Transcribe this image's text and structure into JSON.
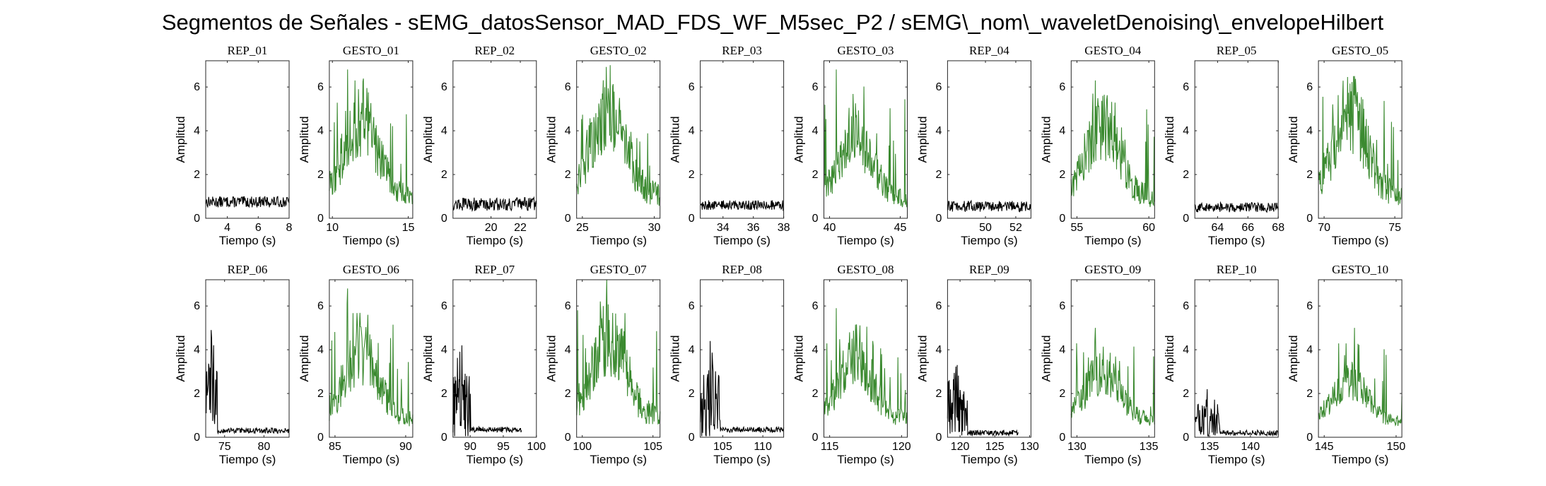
{
  "figure_title": "Segmentos de Señales - sEMG_datosSensor_MAD_FDS_WF_M5sec_P2 / sEMG\\_nom\\_waveletDenoising\\_envelopeHilbert",
  "colors": {
    "rep": "#000000",
    "gesto": "#3b8a30",
    "axis": "#262626"
  },
  "chart_data": [
    {
      "type": "line",
      "title": "REP_01",
      "xlabel": "Tiempo (s)",
      "ylabel": "Amplitud",
      "xlim": [
        2.6,
        8.0
      ],
      "ylim": [
        0,
        7.2
      ],
      "xticks": [
        4,
        6,
        8
      ],
      "yticks": [
        0,
        2,
        4,
        6
      ],
      "series": [
        {
          "color": "rep",
          "profile": "flat",
          "level": 0.75,
          "noise": 0.25
        }
      ]
    },
    {
      "type": "line",
      "title": "GESTO_01",
      "xlabel": "Tiempo (s)",
      "ylabel": "Amplitud",
      "xlim": [
        9.8,
        15.3
      ],
      "ylim": [
        0,
        7.2
      ],
      "xticks": [
        10,
        15
      ],
      "yticks": [
        0,
        2,
        4,
        6
      ],
      "series": [
        {
          "color": "gesto",
          "profile": "burst",
          "peak": 6.8,
          "level": 2.3
        }
      ]
    },
    {
      "type": "line",
      "title": "REP_02",
      "xlabel": "Tiempo (s)",
      "ylabel": "Amplitud",
      "xlim": [
        17.4,
        23.1
      ],
      "ylim": [
        0,
        7.2
      ],
      "xticks": [
        20,
        22
      ],
      "yticks": [
        0,
        2,
        4,
        6
      ],
      "series": [
        {
          "color": "rep",
          "profile": "flat",
          "level": 0.65,
          "noise": 0.3
        }
      ]
    },
    {
      "type": "line",
      "title": "GESTO_02",
      "xlabel": "Tiempo (s)",
      "ylabel": "Amplitud",
      "xlim": [
        24.6,
        30.4
      ],
      "ylim": [
        0,
        7.2
      ],
      "xticks": [
        25,
        30
      ],
      "yticks": [
        0,
        2,
        4,
        6
      ],
      "series": [
        {
          "color": "gesto",
          "profile": "burst",
          "peak": 5.6,
          "level": 2.6
        }
      ]
    },
    {
      "type": "line",
      "title": "REP_03",
      "xlabel": "Tiempo (s)",
      "ylabel": "Amplitud",
      "xlim": [
        32.5,
        38.0
      ],
      "ylim": [
        0,
        7.2
      ],
      "xticks": [
        34,
        36,
        38
      ],
      "yticks": [
        0,
        2,
        4,
        6
      ],
      "series": [
        {
          "color": "rep",
          "profile": "flat",
          "level": 0.6,
          "noise": 0.22
        }
      ]
    },
    {
      "type": "line",
      "title": "GESTO_03",
      "xlabel": "Tiempo (s)",
      "ylabel": "Amplitud",
      "xlim": [
        39.6,
        45.5
      ],
      "ylim": [
        0,
        7.2
      ],
      "xticks": [
        40,
        45
      ],
      "yticks": [
        0,
        2,
        4,
        6
      ],
      "series": [
        {
          "color": "gesto",
          "profile": "burst",
          "peak": 6.8,
          "level": 1.8
        }
      ]
    },
    {
      "type": "line",
      "title": "REP_04",
      "xlabel": "Tiempo (s)",
      "ylabel": "Amplitud",
      "xlim": [
        47.5,
        53.0
      ],
      "ylim": [
        0,
        7.2
      ],
      "xticks": [
        50,
        52
      ],
      "yticks": [
        0,
        2,
        4,
        6
      ],
      "series": [
        {
          "color": "rep",
          "profile": "flat",
          "level": 0.55,
          "noise": 0.25
        }
      ]
    },
    {
      "type": "line",
      "title": "GESTO_04",
      "xlabel": "Tiempo (s)",
      "ylabel": "Amplitud",
      "xlim": [
        54.6,
        60.4
      ],
      "ylim": [
        0,
        7.2
      ],
      "xticks": [
        55,
        60
      ],
      "yticks": [
        0,
        2,
        4,
        6
      ],
      "series": [
        {
          "color": "gesto",
          "profile": "burst",
          "peak": 6.3,
          "level": 2.2
        }
      ]
    },
    {
      "type": "line",
      "title": "REP_05",
      "xlabel": "Tiempo (s)",
      "ylabel": "Amplitud",
      "xlim": [
        62.5,
        68.0
      ],
      "ylim": [
        0,
        7.2
      ],
      "xticks": [
        64,
        66,
        68
      ],
      "yticks": [
        0,
        2,
        4,
        6
      ],
      "series": [
        {
          "color": "rep",
          "profile": "flat",
          "level": 0.5,
          "noise": 0.22
        }
      ]
    },
    {
      "type": "line",
      "title": "GESTO_05",
      "xlabel": "Tiempo (s)",
      "ylabel": "Amplitud",
      "xlim": [
        69.6,
        75.5
      ],
      "ylim": [
        0,
        7.2
      ],
      "xticks": [
        70,
        75
      ],
      "yticks": [
        0,
        2,
        4,
        6
      ],
      "series": [
        {
          "color": "gesto",
          "profile": "burst",
          "peak": 6.5,
          "level": 2.5
        }
      ]
    },
    {
      "type": "line",
      "title": "REP_06",
      "xlabel": "Tiempo (s)",
      "ylabel": "Amplitud",
      "xlim": [
        72.6,
        83.2
      ],
      "ylim": [
        0,
        7.2
      ],
      "xticks": [
        75,
        80
      ],
      "yticks": [
        0,
        2,
        4,
        6
      ],
      "series": [
        {
          "color": "rep",
          "profile": "decay",
          "peak": 4.9,
          "level": 0.3,
          "onset": 0.14
        }
      ]
    },
    {
      "type": "line",
      "title": "GESTO_06",
      "xlabel": "Tiempo (s)",
      "ylabel": "Amplitud",
      "xlim": [
        84.6,
        90.5
      ],
      "ylim": [
        0,
        7.2
      ],
      "xticks": [
        85,
        90
      ],
      "yticks": [
        0,
        2,
        4,
        6
      ],
      "series": [
        {
          "color": "gesto",
          "profile": "burst",
          "peak": 6.8,
          "level": 1.9
        }
      ]
    },
    {
      "type": "line",
      "title": "REP_07",
      "xlabel": "Tiempo (s)",
      "ylabel": "Amplitud",
      "xlim": [
        87.4,
        100.0
      ],
      "ylim": [
        0,
        7.2
      ],
      "xticks": [
        90,
        95,
        100
      ],
      "yticks": [
        0,
        2,
        4,
        6
      ],
      "series": [
        {
          "color": "rep",
          "profile": "decay",
          "peak": 4.2,
          "level": 0.35,
          "onset": 0.26,
          "end": 0.82
        }
      ]
    },
    {
      "type": "line",
      "title": "GESTO_07",
      "xlabel": "Tiempo (s)",
      "ylabel": "Amplitud",
      "xlim": [
        99.6,
        105.5
      ],
      "ylim": [
        0,
        7.2
      ],
      "xticks": [
        100,
        105
      ],
      "yticks": [
        0,
        2,
        4,
        6
      ],
      "series": [
        {
          "color": "gesto",
          "profile": "burst",
          "peak": 7.2,
          "level": 2.3
        }
      ]
    },
    {
      "type": "line",
      "title": "REP_08",
      "xlabel": "Tiempo (s)",
      "ylabel": "Amplitud",
      "xlim": [
        102.2,
        112.6
      ],
      "ylim": [
        0,
        7.2
      ],
      "xticks": [
        105,
        110
      ],
      "yticks": [
        0,
        2,
        4,
        6
      ],
      "series": [
        {
          "color": "rep",
          "profile": "decay",
          "peak": 4.4,
          "level": 0.35,
          "onset": 0.24
        }
      ]
    },
    {
      "type": "line",
      "title": "GESTO_08",
      "xlabel": "Tiempo (s)",
      "ylabel": "Amplitud",
      "xlim": [
        114.6,
        120.4
      ],
      "ylim": [
        0,
        7.2
      ],
      "xticks": [
        115,
        120
      ],
      "yticks": [
        0,
        2,
        4,
        6
      ],
      "series": [
        {
          "color": "gesto",
          "profile": "burst",
          "peak": 5.9,
          "level": 1.8
        }
      ]
    },
    {
      "type": "line",
      "title": "REP_09",
      "xlabel": "Tiempo (s)",
      "ylabel": "Amplitud",
      "xlim": [
        118.2,
        130.2
      ],
      "ylim": [
        0,
        7.2
      ],
      "xticks": [
        120,
        125,
        130
      ],
      "yticks": [
        0,
        2,
        4,
        6
      ],
      "series": [
        {
          "color": "rep",
          "profile": "decay",
          "peak": 3.3,
          "level": 0.2,
          "onset": 0.28,
          "end": 0.85
        }
      ]
    },
    {
      "type": "line",
      "title": "GESTO_09",
      "xlabel": "Tiempo (s)",
      "ylabel": "Amplitud",
      "xlim": [
        129.6,
        135.4
      ],
      "ylim": [
        0,
        7.2
      ],
      "xticks": [
        130,
        135
      ],
      "yticks": [
        0,
        2,
        4,
        6
      ],
      "series": [
        {
          "color": "gesto",
          "profile": "burst",
          "peak": 5.0,
          "level": 1.5
        }
      ]
    },
    {
      "type": "line",
      "title": "REP_10",
      "xlabel": "Tiempo (s)",
      "ylabel": "Amplitud",
      "xlim": [
        133.2,
        143.4
      ],
      "ylim": [
        0,
        7.2
      ],
      "xticks": [
        135,
        140
      ],
      "yticks": [
        0,
        2,
        4,
        6
      ],
      "series": [
        {
          "color": "rep",
          "profile": "decay",
          "peak": 2.2,
          "level": 0.2,
          "onset": 0.3
        }
      ]
    },
    {
      "type": "line",
      "title": "GESTO_10",
      "xlabel": "Tiempo (s)",
      "ylabel": "Amplitud",
      "xlim": [
        144.6,
        150.4
      ],
      "ylim": [
        0,
        7.2
      ],
      "xticks": [
        145,
        150
      ],
      "yticks": [
        0,
        2,
        4,
        6
      ],
      "series": [
        {
          "color": "gesto",
          "profile": "burst",
          "peak": 5.0,
          "level": 1.2
        }
      ]
    }
  ]
}
